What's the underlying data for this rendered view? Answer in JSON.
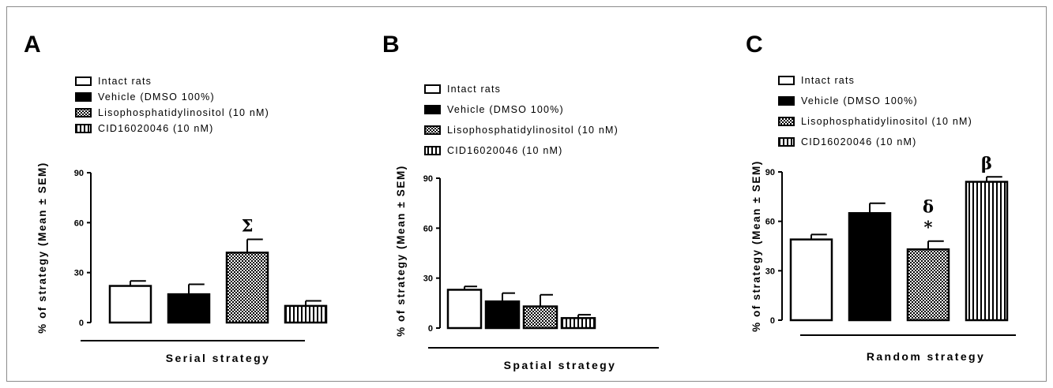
{
  "chart_data": [
    {
      "type": "bar",
      "panel": "A",
      "legend": [
        "Intact rats",
        "Vehicle (DMSO 100%)",
        "Lisophosphatidylinositol (10 nM)",
        "CID16020046 (10 nM)"
      ],
      "series": [
        {
          "name": "Intact rats",
          "value": 22,
          "sem": 3,
          "fill": "white",
          "annotation": ""
        },
        {
          "name": "Vehicle (DMSO 100%)",
          "value": 17,
          "sem": 6,
          "fill": "black",
          "annotation": ""
        },
        {
          "name": "Lisophosphatidylinositol (10 nM)",
          "value": 42,
          "sem": 8,
          "fill": "checker",
          "annotation": "Σ"
        },
        {
          "name": "CID16020046 (10 nM)",
          "value": 10,
          "sem": 3,
          "fill": "vstripes",
          "annotation": ""
        }
      ],
      "ylabel": "% of strategy (Mean ± SEM)",
      "xlabel": "Serial strategy",
      "yticks": [
        0,
        30,
        60,
        90
      ],
      "ylim": [
        0,
        90
      ]
    },
    {
      "type": "bar",
      "panel": "B",
      "legend": [
        "Intact rats",
        "Vehicle (DMSO 100%)",
        "Lisophosphatidylinositol (10 nM)",
        "CID16020046 (10 nM)"
      ],
      "series": [
        {
          "name": "Intact rats",
          "value": 23,
          "sem": 2,
          "fill": "white",
          "annotation": ""
        },
        {
          "name": "Vehicle (DMSO 100%)",
          "value": 16,
          "sem": 5,
          "fill": "black",
          "annotation": ""
        },
        {
          "name": "Lisophosphatidylinositol (10 nM)",
          "value": 13,
          "sem": 7,
          "fill": "checker",
          "annotation": ""
        },
        {
          "name": "CID16020046 (10 nM)",
          "value": 6,
          "sem": 2,
          "fill": "vstripes",
          "annotation": ""
        }
      ],
      "ylabel": "% of strategy (Mean ± SEM)",
      "xlabel": "Spatial strategy",
      "yticks": [
        0,
        30,
        60,
        90
      ],
      "ylim": [
        0,
        90
      ]
    },
    {
      "type": "bar",
      "panel": "C",
      "legend": [
        "Intact rats",
        "Vehicle (DMSO 100%)",
        "Lisophosphatidylinositol (10 nM)",
        "CID16020046 (10 nM)"
      ],
      "series": [
        {
          "name": "Intact rats",
          "value": 49,
          "sem": 3,
          "fill": "white",
          "annotation": ""
        },
        {
          "name": "Vehicle (DMSO 100%)",
          "value": 65,
          "sem": 6,
          "fill": "black",
          "annotation": ""
        },
        {
          "name": "Lisophosphatidylinositol (10 nM)",
          "value": 43,
          "sem": 5,
          "fill": "checker",
          "annotation": "δ *"
        },
        {
          "name": "CID16020046 (10 nM)",
          "value": 84,
          "sem": 3,
          "fill": "vstripes",
          "annotation": "β"
        }
      ],
      "ylabel": "% of strategy (Mean ± SEM)",
      "xlabel": "Random strategy",
      "yticks": [
        0,
        30,
        60,
        90
      ],
      "ylim": [
        0,
        90
      ]
    }
  ]
}
